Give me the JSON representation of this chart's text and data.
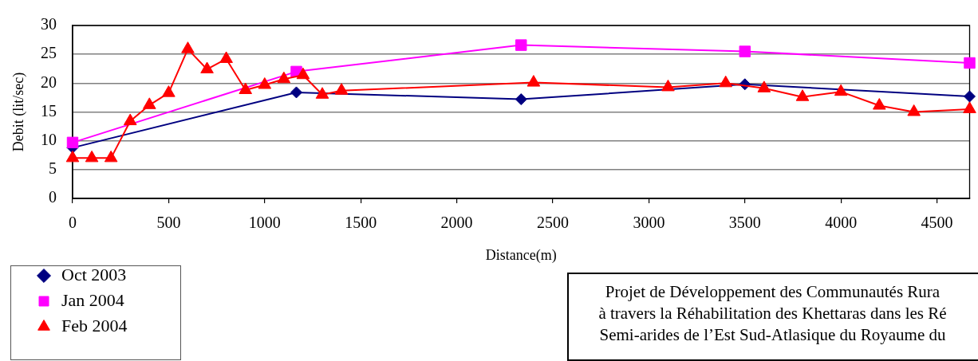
{
  "chart_data": {
    "type": "line",
    "xlabel": "Distance(m)",
    "ylabel": "Debit (lit/sec)",
    "xlim": [
      0,
      4670
    ],
    "xticks": [
      0,
      500,
      1000,
      1500,
      2000,
      2500,
      3000,
      3500,
      4000,
      4500
    ],
    "ylim": [
      0,
      30
    ],
    "yticks": [
      0,
      5,
      10,
      15,
      20,
      25,
      30
    ],
    "grid": "y",
    "legend": "bottom left",
    "series": [
      {
        "name": "Oct 2003",
        "color": "#000080",
        "marker": "diamond",
        "x": [
          0,
          1165,
          2335,
          3500,
          4670
        ],
        "values": [
          8.8,
          18.4,
          17.2,
          19.8,
          17.7
        ]
      },
      {
        "name": "Jan 2004",
        "color": "#ff00ff",
        "marker": "square",
        "x": [
          0,
          1165,
          2335,
          3500,
          4670
        ],
        "values": [
          9.7,
          22.0,
          26.6,
          25.5,
          23.5
        ]
      },
      {
        "name": "Feb 2004",
        "color": "#ff0000",
        "marker": "triangle",
        "x": [
          0,
          100,
          200,
          300,
          400,
          500,
          600,
          700,
          800,
          900,
          1000,
          1100,
          1200,
          1300,
          1400,
          2400,
          3100,
          3400,
          3600,
          3800,
          4000,
          4200,
          4380,
          4670
        ],
        "values": [
          7.0,
          7.0,
          7.0,
          13.4,
          16.2,
          18.3,
          25.9,
          22.4,
          24.2,
          18.8,
          19.7,
          20.7,
          21.4,
          18.0,
          18.7,
          20.1,
          19.3,
          20.0,
          19.1,
          17.6,
          18.5,
          16.1,
          15.0,
          15.5
        ]
      }
    ],
    "annotations": [
      "Projet de Développement des Communautés Rura\nà travers la Réhabilitation des Khettaras dans les Ré\nSemi-arides de l’Est Sud-Atlasique du Royaume du"
    ]
  }
}
